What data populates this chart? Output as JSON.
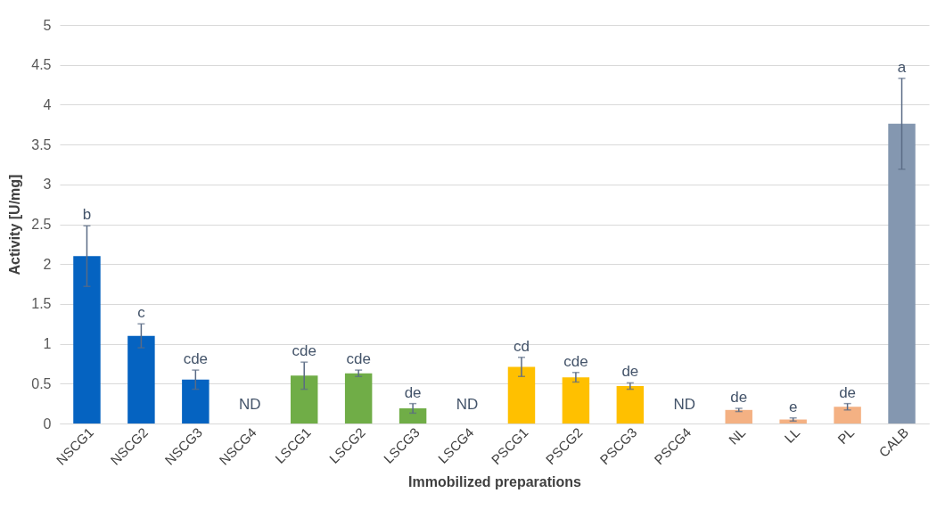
{
  "chart_data": {
    "type": "bar",
    "xlabel": "Immobilized preparations",
    "ylabel": "Activity  [U/mg]",
    "categories": [
      "NSCG1",
      "NSCG2",
      "NSCG3",
      "NSCG4",
      "LSCG1",
      "LSCG2",
      "LSCG3",
      "LSCG4",
      "PSCG1",
      "PSCG2",
      "PSCG3",
      "PSCG4",
      "NL",
      "LL",
      "PL",
      "CALB"
    ],
    "values": [
      2.1,
      1.1,
      0.55,
      null,
      0.6,
      0.63,
      0.19,
      null,
      0.71,
      0.58,
      0.47,
      null,
      0.17,
      0.05,
      0.21,
      3.76
    ],
    "errors": [
      0.38,
      0.15,
      0.12,
      null,
      0.17,
      0.04,
      0.06,
      null,
      0.12,
      0.06,
      0.04,
      null,
      0.02,
      0.02,
      0.04,
      0.57
    ],
    "colors": [
      "#0563c1",
      "#0563c1",
      "#0563c1",
      null,
      "#70ad47",
      "#70ad47",
      "#70ad47",
      null,
      "#ffc000",
      "#ffc000",
      "#ffc000",
      null,
      "#f4b183",
      "#f4b183",
      "#f4b183",
      "#8497b0"
    ],
    "ylim": [
      0,
      5
    ],
    "yticks": [
      0,
      0.5,
      1,
      1.5,
      2,
      2.5,
      3,
      3.5,
      4,
      4.5,
      5
    ],
    "grid": "y",
    "value_labels": [
      null,
      null,
      null,
      "ND",
      null,
      null,
      null,
      "ND",
      null,
      null,
      null,
      "ND",
      null,
      null,
      null,
      null
    ],
    "annotations": [
      {
        "text": "b",
        "x": "NSCG1",
        "y": 2.48
      },
      {
        "text": "c",
        "x": "NSCG2",
        "y": 1.25
      },
      {
        "text": "cde",
        "x": "NSCG3",
        "y": 0.67
      },
      {
        "text": "cde",
        "x": "LSCG1",
        "y": 0.77
      },
      {
        "text": "cde",
        "x": "LSCG2",
        "y": 0.67
      },
      {
        "text": "de",
        "x": "LSCG3",
        "y": 0.25
      },
      {
        "text": "cd",
        "x": "PSCG1",
        "y": 0.83
      },
      {
        "text": "cde",
        "x": "PSCG2",
        "y": 0.64
      },
      {
        "text": "de",
        "x": "PSCG3",
        "y": 0.51
      },
      {
        "text": "de",
        "x": "NL",
        "y": 0.19
      },
      {
        "text": "e",
        "x": "LL",
        "y": 0.07
      },
      {
        "text": "de",
        "x": "PL",
        "y": 0.25
      },
      {
        "text": "a",
        "x": "CALB",
        "y": 4.33
      }
    ]
  }
}
